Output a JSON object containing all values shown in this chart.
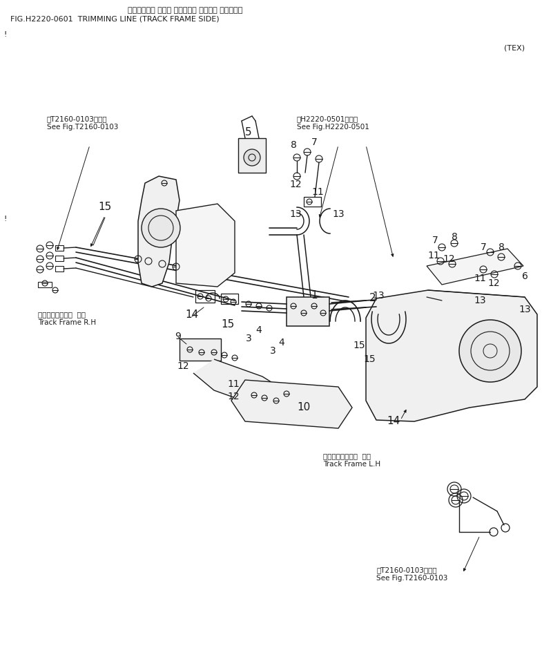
{
  "title_jp": "トリミング゚ ライン （トラック フレーム サイト゚）",
  "title_en": "FIG.H2220-0601  TRIMMING LINE (TRACK FRAME SIDE)",
  "tex_label": "(TEX)",
  "bg_color": "#ffffff",
  "lc": "#1a1a1a",
  "fig_w": 7.85,
  "fig_h": 9.38,
  "dpi": 100,
  "ref_tl_jp": "第T2160-0103図参照",
  "ref_tl_en": "See Fig.T2160-0103",
  "ref_tr_jp": "第H2220-0501図参照",
  "ref_tr_en": "See Fig.H2220-0501",
  "ref_br_jp": "第T2160-0103図参照",
  "ref_br_en": "See Fig.T2160-0103",
  "track_rh_jp": "トラックフレーム  右側",
  "track_rh_en": "Track Frame R.H",
  "track_lh_jp": "トラックフレーム  左側",
  "track_lh_en": "Track Frame L.H"
}
